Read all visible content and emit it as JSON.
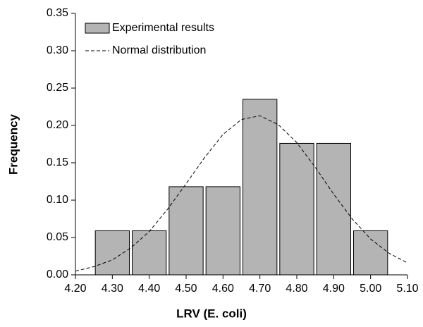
{
  "chart_data": {
    "type": "histogram",
    "xlabel": "LRV (E. coli)",
    "ylabel": "Frequency",
    "bins": [
      4.25,
      4.35,
      4.45,
      4.55,
      4.65,
      4.75,
      4.85,
      4.95,
      5.05
    ],
    "series": [
      {
        "name": "Experimental results",
        "color": "#b4b4b4",
        "values": [
          0.059,
          0.059,
          0.118,
          0.118,
          0.235,
          0.176,
          0.176,
          0.059
        ]
      },
      {
        "name": "Normal distribution",
        "type": "line",
        "color": "#000000",
        "dashed": true,
        "x": [
          4.2,
          4.25,
          4.3,
          4.35,
          4.4,
          4.45,
          4.5,
          4.55,
          4.6,
          4.65,
          4.7,
          4.75,
          4.8,
          4.85,
          4.9,
          4.95,
          5.0,
          5.05,
          5.1
        ],
        "values": [
          0.005,
          0.011,
          0.02,
          0.036,
          0.058,
          0.088,
          0.122,
          0.157,
          0.188,
          0.208,
          0.213,
          0.201,
          0.177,
          0.144,
          0.108,
          0.075,
          0.048,
          0.029,
          0.016
        ]
      }
    ],
    "xlim": [
      4.2,
      5.1
    ],
    "xticks": [
      {
        "value": 4.2,
        "label": "4.20"
      },
      {
        "value": 4.3,
        "label": "4.30"
      },
      {
        "value": 4.4,
        "label": "4.40"
      },
      {
        "value": 4.5,
        "label": "4.50"
      },
      {
        "value": 4.6,
        "label": "4.60"
      },
      {
        "value": 4.7,
        "label": "4.70"
      },
      {
        "value": 4.8,
        "label": "4.80"
      },
      {
        "value": 4.9,
        "label": "4.90"
      },
      {
        "value": 5.0,
        "label": "5.00"
      },
      {
        "value": 5.1,
        "label": "5.10"
      }
    ],
    "ylim": [
      0,
      0.35
    ],
    "yticks": [
      {
        "value": 0,
        "label": "0.00"
      },
      {
        "value": 0.05,
        "label": "0.05"
      },
      {
        "value": 0.1,
        "label": "0.10"
      },
      {
        "value": 0.15,
        "label": "0.15"
      },
      {
        "value": 0.2,
        "label": "0.20"
      },
      {
        "value": 0.25,
        "label": "0.25"
      },
      {
        "value": 0.3,
        "label": "0.30"
      },
      {
        "value": 0.35,
        "label": "0.35"
      }
    ],
    "legend": "upper left",
    "grid": false
  }
}
